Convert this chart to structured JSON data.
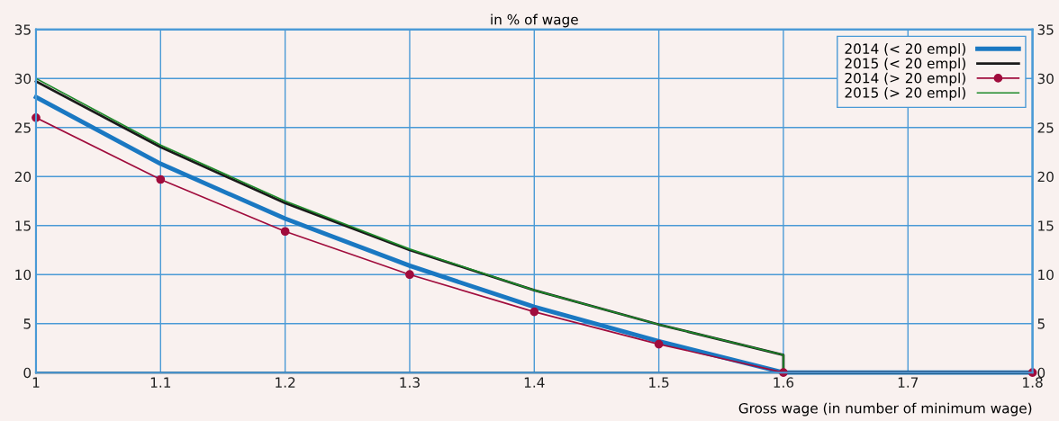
{
  "chart_data": {
    "type": "line",
    "title": "in % of wage",
    "xlabel": "Gross wage (in number of minimum wage)",
    "series": [
      {
        "name": "2014 (< 20 empl)",
        "color": "#1a78c2",
        "x": [
          1.0,
          1.1,
          1.2,
          1.3,
          1.4,
          1.5,
          1.6,
          1.8
        ],
        "values": [
          28.1,
          21.3,
          15.7,
          10.9,
          6.7,
          3.2,
          0,
          0
        ],
        "marker": "none"
      },
      {
        "name": "2015 (< 20 empl)",
        "color": "#1a1a1a",
        "x": [
          1.0,
          1.1,
          1.2,
          1.3,
          1.4,
          1.5,
          1.6,
          1.6,
          1.8
        ],
        "values": [
          29.7,
          23.0,
          17.3,
          12.5,
          8.4,
          4.9,
          1.8,
          0,
          0
        ],
        "marker": "none"
      },
      {
        "name": "2014 (> 20 empl)",
        "color": "#a00c3c",
        "x": [
          1.0,
          1.1,
          1.2,
          1.3,
          1.4,
          1.5,
          1.6,
          1.8
        ],
        "values": [
          26.0,
          19.7,
          14.4,
          10.0,
          6.2,
          2.9,
          0,
          0
        ],
        "marker": "circle"
      },
      {
        "name": "2015 (> 20 empl)",
        "color": "#1e8a2a",
        "x": [
          1.0,
          1.1,
          1.2,
          1.3,
          1.4,
          1.5,
          1.6,
          1.6,
          1.8
        ],
        "values": [
          30.0,
          23.2,
          17.5,
          12.6,
          8.4,
          4.9,
          1.8,
          0,
          0
        ],
        "marker": "none"
      }
    ],
    "xlim": [
      1.0,
      1.8
    ],
    "xticks": [
      1,
      1.1,
      1.2,
      1.3,
      1.4,
      1.5,
      1.6,
      1.7,
      1.8
    ],
    "ylim": [
      0,
      35
    ],
    "yticks": [
      0,
      5,
      10,
      15,
      20,
      25,
      30,
      35
    ],
    "y2lim": [
      0,
      35
    ],
    "y2ticks": [
      0,
      5,
      10,
      15,
      20,
      25,
      30,
      35
    ],
    "grid": true,
    "legend": "top right",
    "line_style": "solid"
  }
}
